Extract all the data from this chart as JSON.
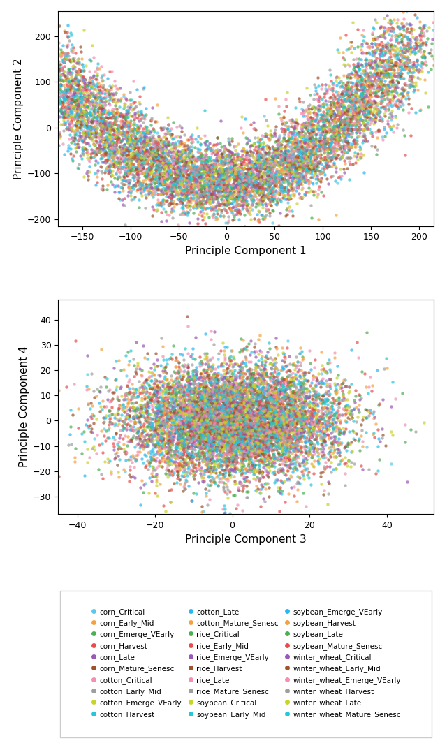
{
  "classes": [
    "corn_Critical",
    "corn_Early_Mid",
    "corn_Emerge_VEarly",
    "corn_Harvest",
    "corn_Late",
    "corn_Mature_Senesc",
    "cotton_Critical",
    "cotton_Early_Mid",
    "cotton_Emerge_VEarly",
    "cotton_Harvest",
    "cotton_Late",
    "cotton_Mature_Senesc",
    "rice_Critical",
    "rice_Early_Mid",
    "rice_Emerge_VEarly",
    "rice_Harvest",
    "rice_Late",
    "rice_Mature_Senesc",
    "soybean_Critical",
    "soybean_Early_Mid",
    "soybean_Emerge_VEarly",
    "soybean_Harvest",
    "soybean_Late",
    "soybean_Mature_Senesc",
    "winter_wheat_Critical",
    "winter_wheat_Early_Mid",
    "winter_wheat_Emerge_VEarly",
    "winter_wheat_Harvest",
    "winter_wheat_Late",
    "winter_wheat_Mature_Senesc"
  ],
  "colors": [
    "#5bc8e8",
    "#f5a142",
    "#4caf50",
    "#e84c4c",
    "#9b59b6",
    "#a0522d",
    "#f48fb1",
    "#9e9e9e",
    "#c8d42a",
    "#26c6da",
    "#29b6f6",
    "#f5a142",
    "#4caf50",
    "#e84c4c",
    "#9b59b6",
    "#a0522d",
    "#f48fb1",
    "#9e9e9e",
    "#c8d42a",
    "#26c6da",
    "#29b6f6",
    "#f5a142",
    "#4caf50",
    "#e84c4c",
    "#9b59b6",
    "#a0522d",
    "#f48fb1",
    "#9e9e9e",
    "#c8d42a",
    "#26c6da"
  ],
  "n_per_class": 300,
  "xlabel1": "Principle Component 1",
  "ylabel1": "Principle Component 2",
  "xlabel2": "Principle Component 3",
  "ylabel2": "Principle Component 4",
  "xlim1": [
    -175,
    215
  ],
  "ylim1": [
    -215,
    255
  ],
  "xlim2": [
    -45,
    52
  ],
  "ylim2": [
    -37,
    48
  ],
  "seed": 42,
  "marker_size": 10,
  "alpha": 0.7,
  "legend_fontsize": 7.5,
  "axis_fontsize": 11
}
